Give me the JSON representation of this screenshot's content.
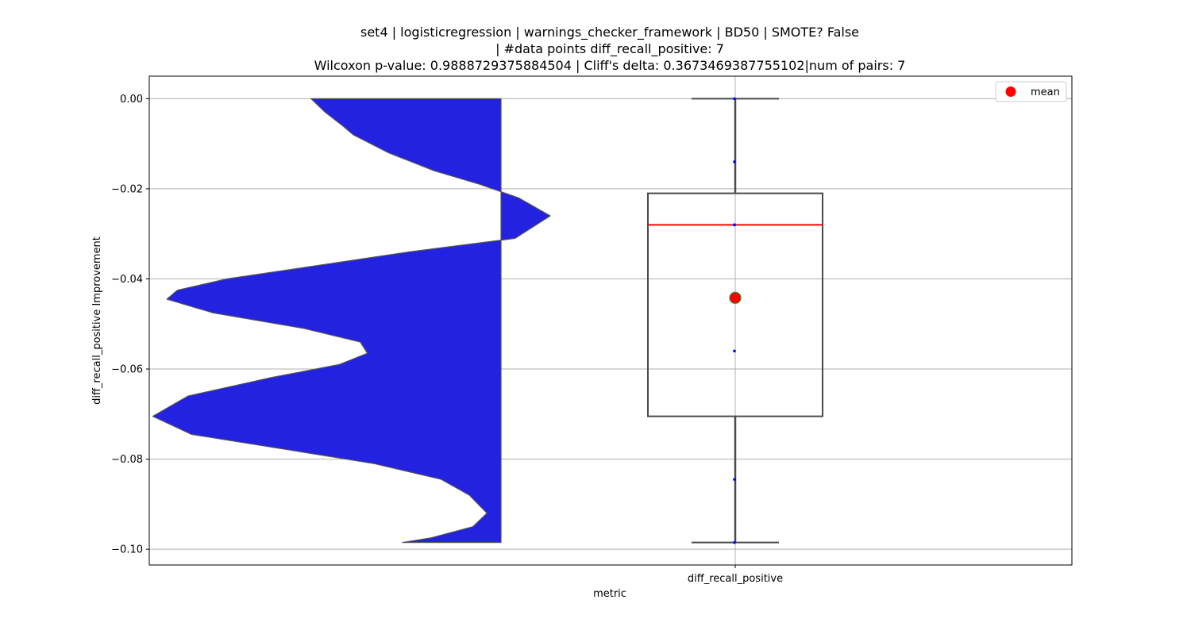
{
  "figure": {
    "title_lines": [
      "set4 | logisticregression | warnings_checker_framework | BD50 | SMOTE? False",
      "| #data points diff_recall_positive: 7",
      "Wilcoxon p-value: 0.9888729375884504 | Cliff's delta: 0.3673469387755102|num of pairs: 7"
    ]
  },
  "chart_data": {
    "type": "violin+box",
    "categories": [
      "diff_recall_positive"
    ],
    "xlabel": "metric",
    "ylabel": "diff_recall_positive Improvement",
    "ylim": [
      -0.1035,
      0.005
    ],
    "yticks": [
      0.0,
      -0.02,
      -0.04,
      -0.06,
      -0.08,
      -0.1
    ],
    "ytick_labels": [
      "0.00",
      "−0.02",
      "−0.04",
      "−0.06",
      "−0.08",
      "−0.10"
    ],
    "grid": true,
    "legend": {
      "position": "top-right",
      "entries": [
        "mean"
      ]
    },
    "points": [
      0.0,
      -0.014,
      -0.028,
      -0.028,
      -0.056,
      -0.0845,
      -0.0985
    ],
    "box": {
      "q1": -0.0705,
      "median": -0.028,
      "q3": -0.021,
      "whisker_low": -0.0985,
      "whisker_high": 0.0,
      "mean": -0.0442
    },
    "violin_profile": [
      {
        "y": 0.0,
        "w": 0.54
      },
      {
        "y": -0.003,
        "w": 0.5
      },
      {
        "y": -0.006,
        "w": 0.45
      },
      {
        "y": -0.008,
        "w": 0.42
      },
      {
        "y": -0.012,
        "w": 0.32
      },
      {
        "y": -0.016,
        "w": 0.19
      },
      {
        "y": -0.019,
        "w": 0.06
      },
      {
        "y": -0.022,
        "w": -0.05
      },
      {
        "y": -0.026,
        "w": -0.14
      },
      {
        "y": -0.031,
        "w": -0.04
      },
      {
        "y": -0.034,
        "w": 0.26
      },
      {
        "y": -0.037,
        "w": 0.52
      },
      {
        "y": -0.04,
        "w": 0.78
      },
      {
        "y": -0.0425,
        "w": 0.92
      },
      {
        "y": -0.0445,
        "w": 0.95
      },
      {
        "y": -0.0475,
        "w": 0.82
      },
      {
        "y": -0.051,
        "w": 0.56
      },
      {
        "y": -0.054,
        "w": 0.4
      },
      {
        "y": -0.0565,
        "w": 0.38
      },
      {
        "y": -0.059,
        "w": 0.46
      },
      {
        "y": -0.062,
        "w": 0.66
      },
      {
        "y": -0.066,
        "w": 0.89
      },
      {
        "y": -0.0705,
        "w": 0.99
      },
      {
        "y": -0.0745,
        "w": 0.88
      },
      {
        "y": -0.078,
        "w": 0.6
      },
      {
        "y": -0.081,
        "w": 0.36
      },
      {
        "y": -0.0845,
        "w": 0.17
      },
      {
        "y": -0.088,
        "w": 0.09
      },
      {
        "y": -0.092,
        "w": 0.04
      },
      {
        "y": -0.095,
        "w": 0.08
      },
      {
        "y": -0.0975,
        "w": 0.2
      },
      {
        "y": -0.0985,
        "w": 0.28
      }
    ],
    "colors": {
      "violin_fill": "#2222e0",
      "violin_edge": "#555555",
      "box_edge": "#4a4a4a",
      "median": "#ff0000",
      "mean_marker_fill": "#ff0000",
      "mean_marker_edge": "#2e8b22",
      "points": "#0000ff",
      "grid": "#b0b0b0"
    }
  }
}
